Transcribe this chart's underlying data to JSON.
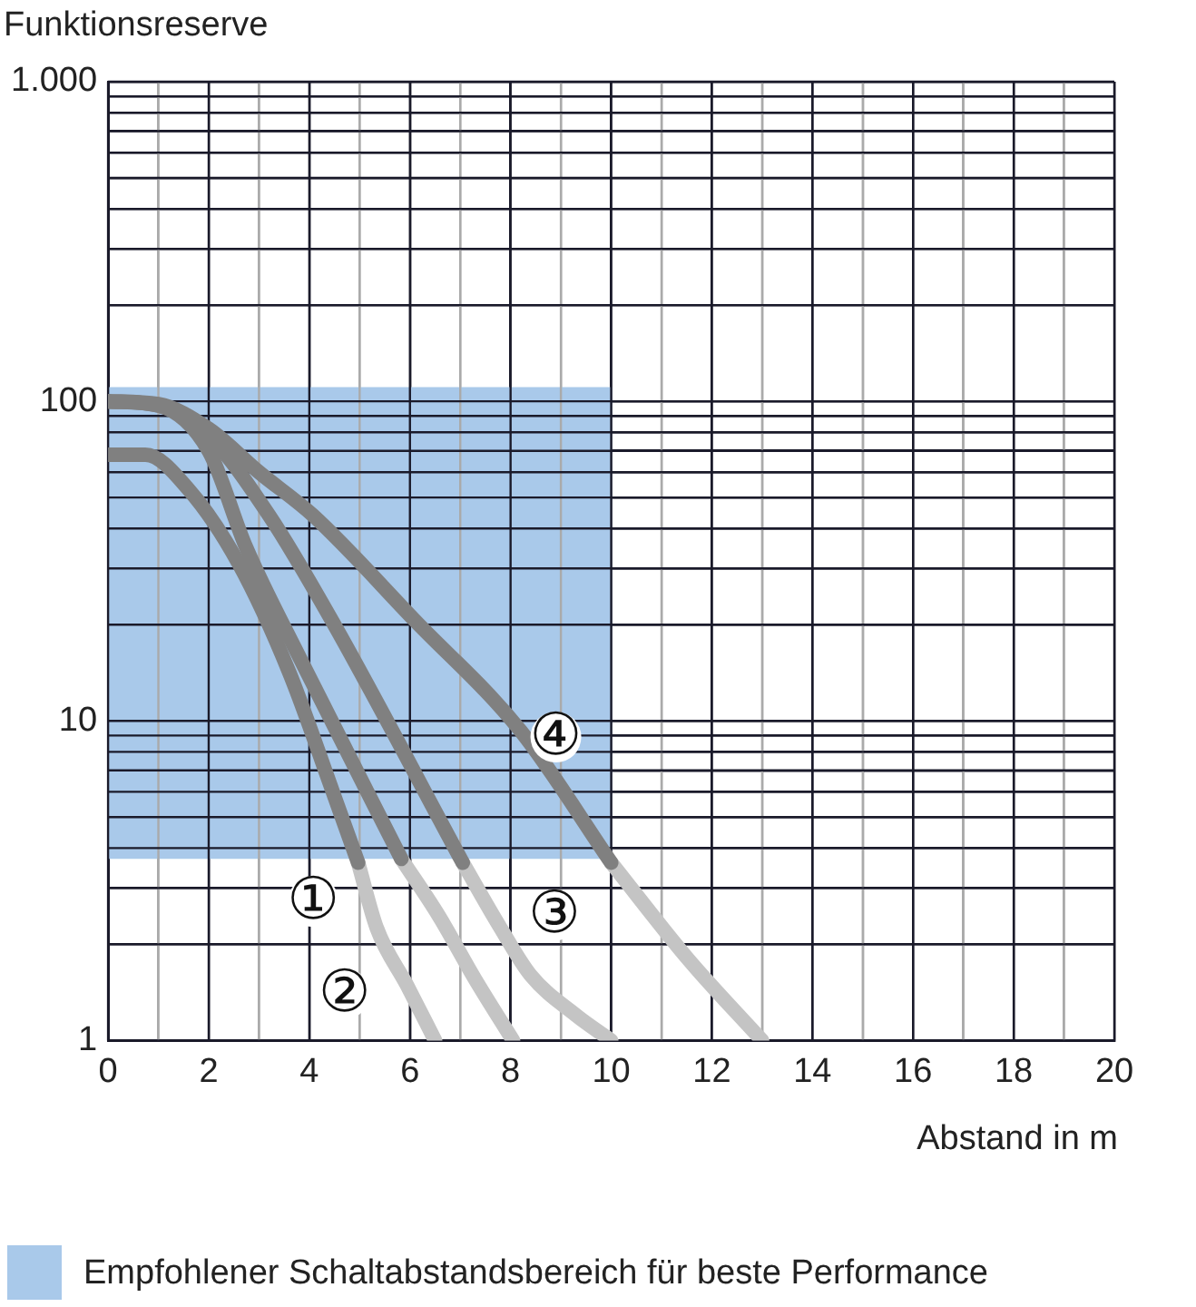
{
  "chart_data": {
    "type": "line",
    "ylabel": "Funktionsreserve",
    "xlabel": "Abstand in m",
    "xlim": [
      0,
      20
    ],
    "xticks": [
      0,
      {
        "value": 1,
        "label": null
      },
      2,
      {
        "value": 3,
        "label": null
      },
      4,
      {
        "value": 5,
        "label": null
      },
      6,
      {
        "value": 7,
        "label": null
      },
      8,
      {
        "value": 9,
        "label": null
      },
      10,
      {
        "value": 11,
        "label": null
      },
      12,
      {
        "value": 13,
        "label": null
      },
      14,
      {
        "value": 15,
        "label": null
      },
      16,
      {
        "value": 17,
        "label": null
      },
      18,
      {
        "value": 19,
        "label": null
      },
      20
    ],
    "ylim": [
      1,
      1000
    ],
    "log": "y",
    "yticks": [
      1,
      {
        "value": 2,
        "label": null
      },
      {
        "value": 3,
        "label": null
      },
      {
        "value": 4,
        "label": null
      },
      {
        "value": 5,
        "label": null
      },
      {
        "value": 6,
        "label": null
      },
      {
        "value": 7,
        "label": null
      },
      {
        "value": 8,
        "label": null
      },
      {
        "value": 9,
        "label": null
      },
      10,
      {
        "value": 20,
        "label": null
      },
      {
        "value": 30,
        "label": null
      },
      {
        "value": 40,
        "label": null
      },
      {
        "value": 50,
        "label": null
      },
      {
        "value": 60,
        "label": null
      },
      {
        "value": 70,
        "label": null
      },
      {
        "value": 80,
        "label": null
      },
      {
        "value": 90,
        "label": null
      },
      100,
      {
        "value": 200,
        "label": null
      },
      {
        "value": 300,
        "label": null
      },
      {
        "value": 400,
        "label": null
      },
      {
        "value": 500,
        "label": null
      },
      {
        "value": 600,
        "label": null
      },
      {
        "value": 700,
        "label": null
      },
      {
        "value": 800,
        "label": null
      },
      {
        "value": 900,
        "label": null
      },
      {
        "value": 1000,
        "label": "1.000"
      }
    ],
    "grid": true,
    "legend": "bottom",
    "marker": "none",
    "line_style": "solid",
    "series": [
      {
        "type": "area",
        "name": "Empfohlener Schaltabstandsbereich für beste Performance",
        "color": "#a9c9ea",
        "x": [
          0,
          0,
          10,
          10
        ],
        "values": [
          3.7,
          110,
          110,
          3.7
        ]
      },
      {
        "color": "#808080",
        "x": [
          0,
          0.74,
          1.6,
          2.6,
          3.6,
          4.45,
          4.97
        ],
        "values": [
          68,
          68,
          53,
          31,
          14.2,
          6.1,
          3.6
        ]
      },
      {
        "color": "#c4c4c4",
        "x": [
          4.97,
          5.34,
          5.94,
          6.5
        ],
        "values": [
          3.6,
          2.25,
          1.49,
          1
        ]
      },
      {
        "color": "#808080",
        "x": [
          0,
          1,
          2,
          2.74,
          3.85,
          5.83
        ],
        "values": [
          100,
          97,
          70,
          35,
          15.3,
          3.7
        ]
      },
      {
        "color": "#c4c4c4",
        "x": [
          5.83,
          6.57,
          7.3,
          8.05
        ],
        "values": [
          3.7,
          2.46,
          1.55,
          1
        ]
      },
      {
        "color": "#808080",
        "x": [
          0,
          1,
          2,
          3.2,
          4.45,
          7.05
        ],
        "values": [
          100,
          97,
          78,
          44,
          20.6,
          3.6
        ]
      },
      {
        "color": "#c4c4c4",
        "x": [
          7.05,
          7.8,
          8.4,
          9.3,
          10
        ],
        "values": [
          3.6,
          2.25,
          1.6,
          1.2,
          1
        ]
      },
      {
        "color": "#808080",
        "x": [
          0,
          1,
          2,
          3,
          4.07,
          6.1,
          8.2,
          10
        ],
        "values": [
          100,
          98,
          82,
          60,
          44,
          20.6,
          9.3,
          3.6
        ]
      },
      {
        "color": "#c4c4c4",
        "x": [
          10,
          11.5,
          13
        ],
        "values": [
          3.6,
          1.82,
          1
        ]
      }
    ],
    "annotations": [
      {
        "text": "①",
        "x": 4.08,
        "y": 2.72
      },
      {
        "text": "②",
        "x": 4.7,
        "y": 1.4
      },
      {
        "text": "③",
        "x": 8.87,
        "y": 2.46
      },
      {
        "text": "④",
        "x": 8.9,
        "y": 8.9
      }
    ]
  }
}
